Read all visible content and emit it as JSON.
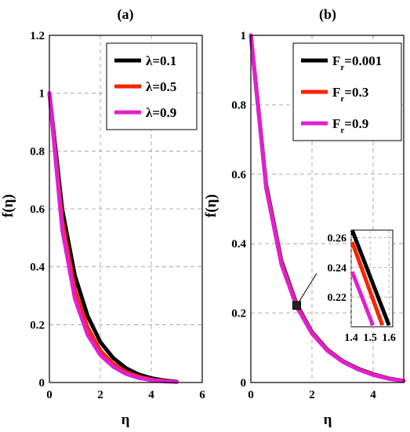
{
  "chart_data": [
    {
      "type": "line",
      "title": "(a)",
      "xlabel": "η",
      "ylabel": "f(η)",
      "xlim": [
        0,
        6
      ],
      "ylim": [
        0,
        1.2
      ],
      "xticks": [
        "0",
        "2",
        "4",
        "6"
      ],
      "yticks": [
        "0",
        "0.2",
        "0.4",
        "0.6",
        "0.8",
        "1",
        "1.2"
      ],
      "grid": true,
      "legend_position": "top-right",
      "x": [
        0,
        0.5,
        1,
        1.5,
        2,
        2.5,
        3,
        3.5,
        4,
        4.5,
        5
      ],
      "series": [
        {
          "name": "λ=0.1",
          "color": "#000000",
          "values": [
            1.0,
            0.6,
            0.37,
            0.23,
            0.14,
            0.085,
            0.05,
            0.028,
            0.015,
            0.007,
            0.003
          ]
        },
        {
          "name": "λ=0.5",
          "color": "#ff2200",
          "values": [
            1.0,
            0.56,
            0.32,
            0.19,
            0.11,
            0.065,
            0.037,
            0.02,
            0.01,
            0.005,
            0.002
          ]
        },
        {
          "name": "λ=0.9",
          "color": "#e020d0",
          "values": [
            1.0,
            0.53,
            0.29,
            0.165,
            0.095,
            0.055,
            0.03,
            0.016,
            0.008,
            0.004,
            0.002
          ]
        }
      ]
    },
    {
      "type": "line",
      "title": "(b)",
      "xlabel": "η",
      "ylabel": "f(η)",
      "xlim": [
        0,
        5
      ],
      "ylim": [
        0,
        1
      ],
      "xticks": [
        "0",
        "2",
        "4"
      ],
      "yticks": [
        "0",
        "0.2",
        "0.4",
        "0.6",
        "0.8",
        "1"
      ],
      "grid": true,
      "legend_position": "top-right",
      "x": [
        0,
        0.5,
        1,
        1.5,
        2,
        2.5,
        3,
        3.5,
        4,
        4.5,
        5
      ],
      "series": [
        {
          "name": "Fr=0.001",
          "name_main": "F",
          "name_sub": "r",
          "name_rest": "=0.001",
          "color": "#000000",
          "values": [
            1.0,
            0.57,
            0.35,
            0.225,
            0.145,
            0.095,
            0.062,
            0.04,
            0.024,
            0.012,
            0.005
          ]
        },
        {
          "name": "Fr=0.3",
          "name_main": "F",
          "name_sub": "r",
          "name_rest": "=0.3",
          "color": "#ff2200",
          "values": [
            1.0,
            0.565,
            0.345,
            0.222,
            0.143,
            0.094,
            0.061,
            0.039,
            0.023,
            0.011,
            0.005
          ]
        },
        {
          "name": "Fr=0.9",
          "name_main": "F",
          "name_sub": "r",
          "name_rest": "=0.9",
          "color": "#e020d0",
          "values": [
            1.0,
            0.56,
            0.34,
            0.218,
            0.141,
            0.092,
            0.06,
            0.038,
            0.022,
            0.011,
            0.005
          ]
        }
      ],
      "inset": {
        "xlim": [
          1.4,
          1.62
        ],
        "ylim": [
          0.2,
          0.265
        ],
        "xticks": [
          "1.4",
          "1.5",
          "1.6"
        ],
        "yticks": [
          "0.22",
          "0.24",
          "0.26"
        ],
        "lines": [
          {
            "color": "#000000",
            "x": [
              1.405,
              1.6
            ],
            "y": [
              0.265,
              0.201
            ]
          },
          {
            "color": "#ff2200",
            "x": [
              1.405,
              1.565
            ],
            "y": [
              0.257,
              0.201
            ]
          },
          {
            "color": "#e020d0",
            "x": [
              1.405,
              1.515
            ],
            "y": [
              0.237,
              0.201
            ]
          }
        ]
      }
    }
  ]
}
